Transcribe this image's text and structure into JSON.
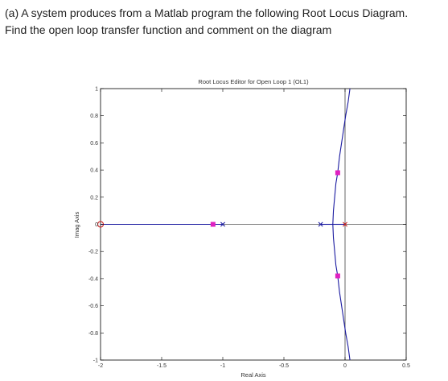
{
  "question": {
    "line1": "(a) A system produces from a Matlab program the following Root Locus Diagram.",
    "line2": "Find the open loop transfer function and comment on the diagram"
  },
  "chart_data": {
    "type": "scatter",
    "title": "Root Locus Editor for Open Loop 1 (OL1)",
    "xlabel": "Real Axis",
    "ylabel": "Imag Axis",
    "xlim": [
      -2,
      0.5
    ],
    "ylim": [
      -1,
      1
    ],
    "x_ticks": [
      -2,
      -1.5,
      -1,
      -0.5,
      0,
      0.5
    ],
    "x_tick_labels": [
      "-2",
      "-1.5",
      "-1",
      "-0.5",
      "0",
      "0.5"
    ],
    "y_ticks": [
      -1,
      -0.8,
      -0.6,
      -0.4,
      -0.2,
      0,
      0.2,
      0.4,
      0.6,
      0.8,
      1
    ],
    "y_tick_labels": [
      "-1",
      "-0.8",
      "-0.6",
      "-0.4",
      "-0.2",
      "0",
      "0.2",
      "0.4",
      "0.6",
      "0.8",
      "1"
    ],
    "grid": false,
    "colors": {
      "locus": "#1a1aa0",
      "pole": "#1a1aa0",
      "pole_red": "#cc2222",
      "zero": "#cc2222",
      "closed_loop_pole": "#e020c0",
      "axes": "#000000",
      "title": "#333333"
    },
    "open_loop_poles": [
      {
        "x": -1,
        "y": 0,
        "color": "blue"
      },
      {
        "x": -0.2,
        "y": 0,
        "color": "blue"
      },
      {
        "x": 0,
        "y": 0,
        "color": "red"
      }
    ],
    "open_loop_zeros": [
      {
        "x": -2,
        "y": 0
      }
    ],
    "closed_loop_poles": [
      {
        "x": -1.08,
        "y": 0
      },
      {
        "x": -0.06,
        "y": 0.38
      },
      {
        "x": -0.06,
        "y": -0.38
      }
    ],
    "series": [
      {
        "points": [
          [
            -2,
            0
          ],
          [
            -1.08,
            0
          ],
          [
            -1,
            0
          ]
        ]
      },
      {
        "points": [
          [
            -0.2,
            0
          ],
          [
            -0.1,
            0
          ]
        ]
      },
      {
        "points": [
          [
            0,
            0
          ],
          [
            -0.1,
            0
          ]
        ]
      },
      {
        "points": [
          [
            -0.1,
            0
          ],
          [
            -0.095,
            0.1
          ],
          [
            -0.085,
            0.2
          ],
          [
            -0.075,
            0.3
          ],
          [
            -0.06,
            0.38
          ],
          [
            -0.045,
            0.5
          ],
          [
            -0.02,
            0.65
          ],
          [
            0.005,
            0.8
          ],
          [
            0.025,
            0.9
          ],
          [
            0.04,
            1.0
          ]
        ]
      },
      {
        "points": [
          [
            -0.1,
            0
          ],
          [
            -0.095,
            -0.1
          ],
          [
            -0.085,
            -0.2
          ],
          [
            -0.075,
            -0.3
          ],
          [
            -0.06,
            -0.38
          ],
          [
            -0.045,
            -0.5
          ],
          [
            -0.02,
            -0.65
          ],
          [
            0.005,
            -0.8
          ],
          [
            0.025,
            -0.9
          ],
          [
            0.04,
            -1.0
          ]
        ]
      }
    ],
    "reference_lines": {
      "vertical_x": 0,
      "horizontal_y": 0
    }
  }
}
